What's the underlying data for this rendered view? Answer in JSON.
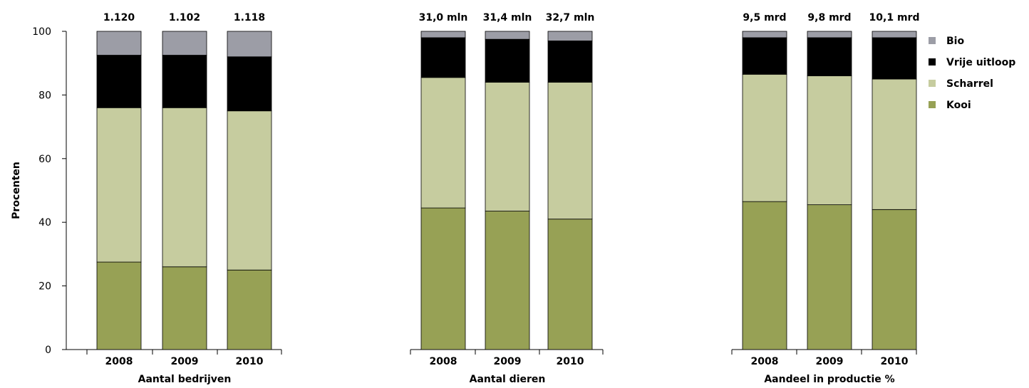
{
  "chart_data": {
    "type": "bar",
    "stacked": true,
    "ylabel": "Procenten",
    "ylim": [
      0,
      100
    ],
    "yticks": [
      "0",
      "20",
      "40",
      "60",
      "80",
      "100"
    ],
    "grid": false,
    "legend_position": "right",
    "series": [
      {
        "name": "Kooi",
        "color": "#97a155"
      },
      {
        "name": "Scharrel",
        "color": "#c6cc9f"
      },
      {
        "name": "Vrije uitloop",
        "color": "#000000"
      },
      {
        "name": "Bio",
        "color": "#9c9da6"
      }
    ],
    "legend_order": [
      "Bio",
      "Vrije uitloop",
      "Scharrel",
      "Kooi"
    ],
    "groups": [
      {
        "label": "Aantal bedrijven",
        "bars": [
          {
            "category": "2008",
            "top_label": "1.120",
            "values": [
              27.5,
              48.5,
              16.5,
              7.5
            ]
          },
          {
            "category": "2009",
            "top_label": "1.102",
            "values": [
              26,
              50,
              16.5,
              7.5
            ]
          },
          {
            "category": "2010",
            "top_label": "1.118",
            "values": [
              25,
              50,
              17,
              8
            ]
          }
        ]
      },
      {
        "label": "Aantal dieren",
        "bars": [
          {
            "category": "2008",
            "top_label": "31,0 mln",
            "values": [
              44.5,
              41,
              12.5,
              2
            ]
          },
          {
            "category": "2009",
            "top_label": "31,4 mln",
            "values": [
              43.5,
              40.5,
              13.5,
              2.5
            ]
          },
          {
            "category": "2010",
            "top_label": "32,7 mln",
            "values": [
              41,
              43,
              13,
              3
            ]
          }
        ]
      },
      {
        "label": "Aandeel in productie %",
        "bars": [
          {
            "category": "2008",
            "top_label": "9,5 mrd",
            "values": [
              46.5,
              40,
              11.5,
              2
            ]
          },
          {
            "category": "2009",
            "top_label": "9,8 mrd",
            "values": [
              45.5,
              40.5,
              12,
              2
            ]
          },
          {
            "category": "2010",
            "top_label": "10,1 mrd",
            "values": [
              44,
              41,
              13,
              2
            ]
          }
        ]
      }
    ]
  }
}
